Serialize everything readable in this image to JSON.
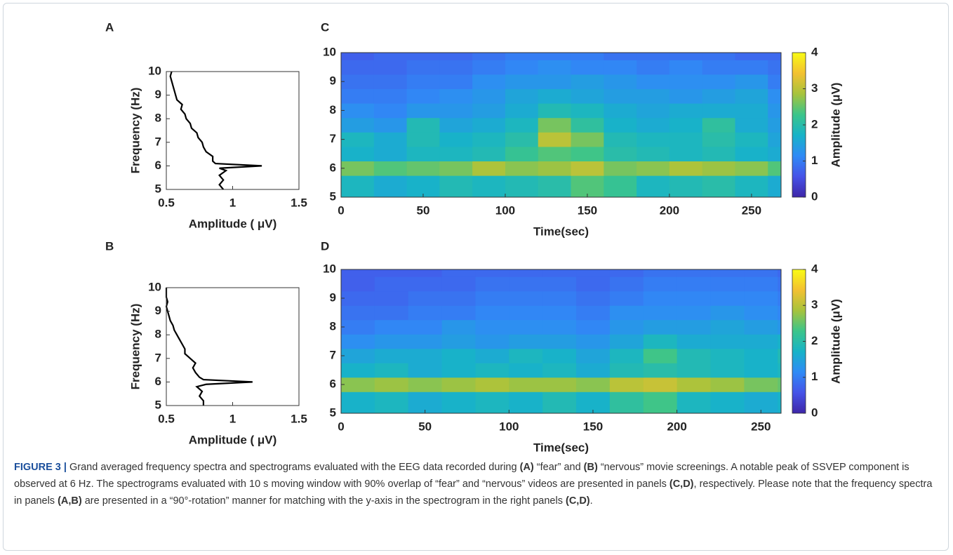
{
  "chart_data": [
    {
      "type": "line",
      "panel_label": "A",
      "orientation": "horizontal",
      "xlabel": "Amplitude ( μV)",
      "ylabel": "Frequency (Hz)",
      "color": "#000000",
      "y": [
        5.0,
        5.2,
        5.4,
        5.6,
        5.8,
        5.9,
        6.0,
        6.1,
        6.2,
        6.4,
        6.6,
        6.8,
        7.0,
        7.2,
        7.4,
        7.6,
        7.8,
        8.0,
        8.2,
        8.4,
        8.6,
        8.8,
        9.0,
        9.2,
        9.4,
        9.6,
        9.8,
        10.0
      ],
      "values": [
        0.93,
        0.9,
        0.93,
        0.9,
        0.95,
        0.9,
        1.22,
        0.87,
        0.85,
        0.85,
        0.8,
        0.78,
        0.77,
        0.74,
        0.73,
        0.69,
        0.68,
        0.65,
        0.64,
        0.61,
        0.62,
        0.58,
        0.57,
        0.56,
        0.55,
        0.54,
        0.53,
        0.54
      ],
      "xlim": [
        0.5,
        1.5
      ],
      "xticks": [
        0.5,
        1,
        1.5
      ],
      "ylim": [
        5,
        10
      ],
      "yticks": [
        5,
        6,
        7,
        8,
        9,
        10
      ]
    },
    {
      "type": "heatmap",
      "panel_label": "C",
      "xlabel": "Time(sec)",
      "colorbar_label": "Amplitude (μV)",
      "xedges": [
        0,
        20,
        40,
        60,
        80,
        100,
        120,
        140,
        160,
        180,
        200,
        220,
        240,
        260,
        268
      ],
      "yedges": [
        5,
        5.75,
        6.25,
        6.75,
        7.25,
        7.75,
        8.25,
        8.75,
        9.25,
        9.75,
        10
      ],
      "z": [
        [
          1.8,
          1.6,
          1.7,
          1.9,
          1.8,
          1.9,
          2.0,
          2.4,
          2.2,
          1.8,
          1.9,
          2.0,
          1.8,
          1.6
        ],
        [
          2.6,
          2.4,
          2.5,
          2.6,
          2.9,
          2.7,
          2.8,
          3.0,
          2.6,
          2.7,
          2.9,
          2.8,
          2.7,
          2.4
        ],
        [
          1.7,
          1.6,
          1.8,
          1.8,
          1.9,
          2.2,
          2.4,
          2.3,
          2.0,
          1.9,
          1.8,
          1.9,
          1.7,
          1.6
        ],
        [
          1.8,
          1.6,
          1.9,
          1.7,
          1.8,
          2.0,
          3.0,
          2.6,
          1.9,
          1.8,
          1.8,
          2.0,
          1.8,
          1.5
        ],
        [
          1.4,
          1.3,
          1.9,
          1.5,
          1.6,
          1.8,
          2.6,
          2.1,
          1.7,
          1.6,
          1.7,
          2.1,
          1.6,
          1.4
        ],
        [
          1.2,
          1.1,
          1.3,
          1.3,
          1.4,
          1.6,
          1.9,
          1.8,
          1.6,
          1.5,
          1.6,
          1.6,
          1.6,
          1.3
        ],
        [
          1.0,
          1.0,
          1.1,
          1.2,
          1.3,
          1.5,
          1.6,
          1.5,
          1.4,
          1.4,
          1.3,
          1.4,
          1.5,
          1.2
        ],
        [
          0.9,
          0.9,
          1.0,
          1.0,
          1.2,
          1.3,
          1.3,
          1.4,
          1.3,
          1.2,
          1.2,
          1.2,
          1.3,
          1.0
        ],
        [
          0.8,
          0.8,
          0.9,
          0.9,
          1.0,
          1.1,
          1.2,
          1.1,
          1.1,
          1.0,
          1.1,
          1.0,
          1.0,
          0.9
        ],
        [
          0.7,
          0.8,
          0.8,
          0.8,
          0.9,
          1.0,
          1.0,
          1.0,
          0.9,
          0.9,
          0.9,
          0.9,
          0.8,
          0.8
        ]
      ],
      "xlim": [
        0,
        268
      ],
      "xticks": [
        0,
        50,
        100,
        150,
        200,
        250
      ],
      "ylim": [
        5,
        10
      ],
      "yticks": [
        5,
        6,
        7,
        8,
        9,
        10
      ],
      "clim": [
        0,
        4
      ],
      "cticks": [
        0,
        1,
        2,
        3,
        4
      ],
      "colormap": [
        "#3e26a8",
        "#4653e8",
        "#2f8bf6",
        "#17b3c8",
        "#3cc58a",
        "#a7c33c",
        "#f3c131",
        "#f9fb15"
      ]
    },
    {
      "type": "line",
      "panel_label": "B",
      "orientation": "horizontal",
      "xlabel": "Amplitude ( μV)",
      "ylabel": "Frequency (Hz)",
      "color": "#000000",
      "y": [
        5.0,
        5.2,
        5.4,
        5.6,
        5.8,
        5.9,
        6.0,
        6.1,
        6.2,
        6.4,
        6.6,
        6.8,
        7.0,
        7.2,
        7.4,
        7.6,
        7.8,
        8.0,
        8.2,
        8.4,
        8.6,
        8.8,
        9.0,
        9.2,
        9.4,
        9.6,
        9.8,
        10.0
      ],
      "values": [
        0.78,
        0.78,
        0.75,
        0.77,
        0.73,
        0.8,
        1.15,
        0.78,
        0.75,
        0.72,
        0.7,
        0.72,
        0.68,
        0.64,
        0.64,
        0.62,
        0.6,
        0.58,
        0.56,
        0.55,
        0.53,
        0.52,
        0.51,
        0.5,
        0.51,
        0.5,
        0.5,
        0.5
      ],
      "xlim": [
        0.5,
        1.5
      ],
      "xticks": [
        0.5,
        1,
        1.5
      ],
      "ylim": [
        5,
        10
      ],
      "yticks": [
        5,
        6,
        7,
        8,
        9,
        10
      ]
    },
    {
      "type": "heatmap",
      "panel_label": "D",
      "xlabel": "Time(sec)",
      "colorbar_label": "Amplitude (μV)",
      "xedges": [
        0,
        20,
        40,
        60,
        80,
        100,
        120,
        140,
        160,
        180,
        200,
        220,
        240,
        260,
        262
      ],
      "yedges": [
        5,
        5.75,
        6.25,
        6.75,
        7.25,
        7.75,
        8.25,
        8.75,
        9.25,
        9.75,
        10
      ],
      "z": [
        [
          1.7,
          1.8,
          1.6,
          1.7,
          1.8,
          1.7,
          1.9,
          1.7,
          2.1,
          2.3,
          1.8,
          1.7,
          1.6,
          1.7
        ],
        [
          2.7,
          2.8,
          2.7,
          2.8,
          2.9,
          2.8,
          2.8,
          2.7,
          3.0,
          3.1,
          2.9,
          2.8,
          2.6,
          2.5
        ],
        [
          1.7,
          1.8,
          1.6,
          1.7,
          1.8,
          1.7,
          1.8,
          1.6,
          1.9,
          2.0,
          1.9,
          1.8,
          1.7,
          1.8
        ],
        [
          1.5,
          1.6,
          1.6,
          1.7,
          1.6,
          1.8,
          1.7,
          1.5,
          1.8,
          2.3,
          1.9,
          1.8,
          1.7,
          1.9
        ],
        [
          1.2,
          1.3,
          1.3,
          1.4,
          1.3,
          1.4,
          1.4,
          1.3,
          1.5,
          1.8,
          1.6,
          1.6,
          1.6,
          1.7
        ],
        [
          1.0,
          1.1,
          1.1,
          1.3,
          1.2,
          1.2,
          1.2,
          1.1,
          1.3,
          1.4,
          1.4,
          1.5,
          1.4,
          1.3
        ],
        [
          0.9,
          0.9,
          1.0,
          1.0,
          1.1,
          1.1,
          1.1,
          1.0,
          1.2,
          1.2,
          1.2,
          1.3,
          1.2,
          1.1
        ],
        [
          0.8,
          0.8,
          0.9,
          0.9,
          1.0,
          1.0,
          1.0,
          0.9,
          1.0,
          1.1,
          1.1,
          1.1,
          1.1,
          1.0
        ],
        [
          0.7,
          0.8,
          0.8,
          0.8,
          0.9,
          0.9,
          0.9,
          0.8,
          0.9,
          1.0,
          1.0,
          1.0,
          1.0,
          0.9
        ],
        [
          0.7,
          0.7,
          0.7,
          0.8,
          0.8,
          0.8,
          0.8,
          0.8,
          0.8,
          0.9,
          0.9,
          0.9,
          0.9,
          0.8
        ]
      ],
      "xlim": [
        0,
        262
      ],
      "xticks": [
        0,
        50,
        100,
        150,
        200,
        250
      ],
      "ylim": [
        5,
        10
      ],
      "yticks": [
        5,
        6,
        7,
        8,
        9,
        10
      ],
      "clim": [
        0,
        4
      ],
      "cticks": [
        0,
        1,
        2,
        3,
        4
      ],
      "colormap": [
        "#3e26a8",
        "#4653e8",
        "#2f8bf6",
        "#17b3c8",
        "#3cc58a",
        "#a7c33c",
        "#f3c131",
        "#f9fb15"
      ]
    }
  ],
  "caption": [
    {
      "text": "FIGURE 3 |",
      "bold": true
    },
    {
      "text": " Grand averaged frequency spectra and spectrograms evaluated with the EEG data recorded during "
    },
    {
      "text": "(A)",
      "bold": true
    },
    {
      "text": " “fear” and "
    },
    {
      "text": "(B)",
      "bold": true
    },
    {
      "text": " “nervous” movie screenings. A notable peak of SSVEP component is observed at 6 Hz. The spectrograms evaluated with 10 s moving window with 90% overlap of “fear” and “nervous” videos are presented in panels "
    },
    {
      "text": "(C,D)",
      "bold": true
    },
    {
      "text": ", respectively. Please note that the frequency spectra in panels "
    },
    {
      "text": "(A,B)",
      "bold": true
    },
    {
      "text": " are presented in a “90°-rotation” manner for matching with the y-axis in the spectrogram in the right panels "
    },
    {
      "text": "(C,D)",
      "bold": true
    },
    {
      "text": "."
    }
  ]
}
